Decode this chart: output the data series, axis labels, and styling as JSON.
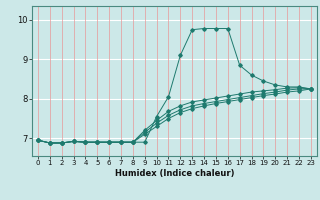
{
  "xlabel": "Humidex (Indice chaleur)",
  "ylabel": "",
  "bg_color": "#cce8e8",
  "line_color": "#1e7a6e",
  "grid_color_h": "#ffffff",
  "grid_color_v": "#e89898",
  "xlim": [
    -0.5,
    23.5
  ],
  "ylim": [
    6.55,
    10.35
  ],
  "yticks": [
    7,
    8,
    9,
    10
  ],
  "xticks": [
    0,
    1,
    2,
    3,
    4,
    5,
    6,
    7,
    8,
    9,
    10,
    11,
    12,
    13,
    14,
    15,
    16,
    17,
    18,
    19,
    20,
    21,
    22,
    23
  ],
  "series": [
    {
      "x": [
        0,
        1,
        2,
        3,
        4,
        5,
        6,
        7,
        8,
        9,
        10,
        11,
        12,
        13,
        14,
        15,
        16,
        17,
        18,
        19,
        20,
        21,
        22,
        23
      ],
      "y": [
        6.95,
        6.88,
        6.88,
        6.92,
        6.9,
        6.9,
        6.9,
        6.9,
        6.9,
        6.9,
        7.55,
        8.05,
        9.1,
        9.75,
        9.78,
        9.78,
        9.78,
        8.85,
        8.6,
        8.45,
        8.35,
        8.3,
        8.3,
        8.25
      ]
    },
    {
      "x": [
        0,
        1,
        2,
        3,
        4,
        5,
        6,
        7,
        8,
        9,
        10,
        11,
        12,
        13,
        14,
        15,
        16,
        17,
        18,
        19,
        20,
        21,
        22,
        23
      ],
      "y": [
        6.95,
        6.88,
        6.88,
        6.92,
        6.9,
        6.9,
        6.9,
        6.9,
        6.9,
        7.1,
        7.3,
        7.5,
        7.65,
        7.75,
        7.82,
        7.88,
        7.93,
        7.98,
        8.03,
        8.08,
        8.12,
        8.17,
        8.2,
        8.25
      ]
    },
    {
      "x": [
        0,
        1,
        2,
        3,
        4,
        5,
        6,
        7,
        8,
        9,
        10,
        11,
        12,
        13,
        14,
        15,
        16,
        17,
        18,
        19,
        20,
        21,
        22,
        23
      ],
      "y": [
        6.95,
        6.88,
        6.88,
        6.92,
        6.9,
        6.9,
        6.9,
        6.9,
        6.9,
        7.15,
        7.38,
        7.58,
        7.72,
        7.82,
        7.88,
        7.93,
        7.98,
        8.03,
        8.08,
        8.13,
        8.17,
        8.22,
        8.25,
        8.25
      ]
    },
    {
      "x": [
        0,
        1,
        2,
        3,
        4,
        5,
        6,
        7,
        8,
        9,
        10,
        11,
        12,
        13,
        14,
        15,
        16,
        17,
        18,
        19,
        20,
        21,
        22,
        23
      ],
      "y": [
        6.95,
        6.88,
        6.88,
        6.92,
        6.9,
        6.9,
        6.9,
        6.9,
        6.9,
        7.2,
        7.45,
        7.68,
        7.82,
        7.92,
        7.97,
        8.02,
        8.07,
        8.12,
        8.17,
        8.2,
        8.23,
        8.27,
        8.28,
        8.25
      ]
    }
  ]
}
